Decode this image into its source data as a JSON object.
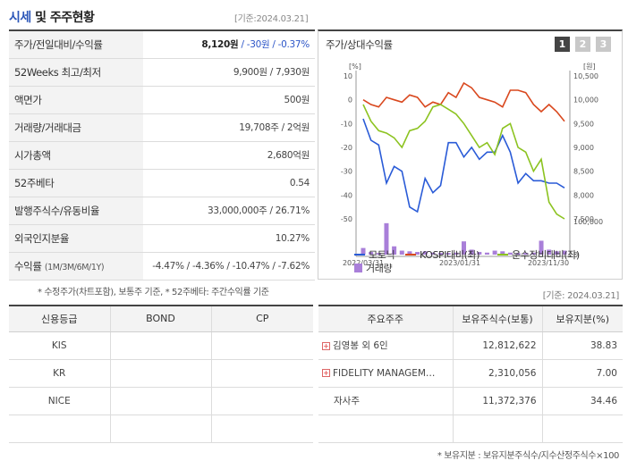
{
  "title_main": "시세",
  "title_sub": " 및 주주현황",
  "date_label": "[기준:2024.03.21]",
  "info_rows": [
    {
      "label": "주가/전일대비/수익률",
      "price": "8,120원",
      "rest": " / -30원 / -0.37%"
    },
    {
      "label": "52Weeks 최고/최저",
      "value": "9,900원 / 7,930원"
    },
    {
      "label": "액면가",
      "value": "500원"
    },
    {
      "label": "거래량/거래대금",
      "value": "19,708주 / 2억원"
    },
    {
      "label": "시가총액",
      "value": "2,680억원"
    },
    {
      "label": "52주베타",
      "value": "0.54"
    },
    {
      "label": "발행주식수/유동비율",
      "value": "33,000,000주 / 26.71%"
    },
    {
      "label": "외국인지분율",
      "value": "10.27%"
    },
    {
      "label": "수익률",
      "label_small": "(1M/3M/6M/1Y)",
      "value": "-4.47% / -4.36% / -10.47% / -7.62%"
    }
  ],
  "footnote_left": "* 수정주가(차트포함), 보통주 기준, * 52주베타: 주간수익률 기준",
  "chart_panel": {
    "title": "주가/상대수익률",
    "tabs": [
      "1",
      "2",
      "3"
    ],
    "left_unit": "[%]",
    "right_unit": "[원]",
    "legend": [
      "모토닉",
      "KOSPI대비(좌)",
      "운수장비대비(좌)",
      "거래량"
    ],
    "colors": {
      "stock": "#2a5bd7",
      "kospi": "#d9481e",
      "sector": "#8cc320",
      "volume": "#a97fd9"
    }
  },
  "chart_data": {
    "type": "line",
    "x_ticks": [
      "2022/03/31",
      "2023/01/31",
      "2023/11/30"
    ],
    "left_axis": {
      "ticks": [
        "10",
        "0",
        "-10",
        "-20",
        "-30",
        "-40",
        "-50"
      ],
      "range": [
        -50,
        10
      ]
    },
    "right_axis": {
      "ticks": [
        "10,500",
        "10,000",
        "9,500",
        "9,000",
        "8,500",
        "8,000",
        "7,500"
      ],
      "range": [
        7500,
        10500
      ]
    },
    "volume_axis": {
      "ticks": [
        "100,000",
        "0"
      ],
      "range": [
        0,
        100000
      ]
    },
    "series": [
      {
        "name": "모토닉",
        "axis": "left",
        "values": [
          -8,
          -17,
          -19,
          -35,
          -28,
          -30,
          -45,
          -47,
          -33,
          -39,
          -36,
          -18,
          -18,
          -24,
          -20,
          -25,
          -22,
          -22,
          -15,
          -22,
          -35,
          -31,
          -34,
          -34,
          -35,
          -35,
          -37
        ]
      },
      {
        "name": "KOSPI대비(좌)",
        "axis": "left",
        "values": [
          0,
          -2,
          -3,
          1,
          0,
          -1,
          2,
          1,
          -3,
          -1,
          -2,
          3,
          1,
          7,
          5,
          1,
          0,
          -1,
          -3,
          4,
          4,
          3,
          -2,
          -5,
          -2,
          -5,
          -9
        ]
      },
      {
        "name": "운수장비대비(좌)",
        "axis": "left",
        "values": [
          -2,
          -9,
          -13,
          -14,
          -16,
          -20,
          -13,
          -12,
          -9,
          -3,
          -2,
          -4,
          -6,
          -10,
          -15,
          -20,
          -18,
          -23,
          -12,
          -10,
          -20,
          -22,
          -30,
          -25,
          -43,
          -48,
          -50
        ]
      },
      {
        "name": "거래량",
        "axis": "volume",
        "values": [
          20000,
          8000,
          5000,
          95000,
          25000,
          12000,
          10000,
          8000,
          10000,
          6000,
          5000,
          5000,
          6000,
          40000,
          15000,
          8000,
          6000,
          12000,
          10000,
          6000,
          5000,
          5000,
          6000,
          42000,
          15000,
          10000,
          12000
        ]
      }
    ]
  },
  "date_label_2": "[기준: 2024.03.21]",
  "credit_table": {
    "headers": [
      "신용등급",
      "BOND",
      "CP"
    ],
    "rows": [
      [
        "KIS",
        "",
        ""
      ],
      [
        "KR",
        "",
        ""
      ],
      [
        "NICE",
        "",
        ""
      ],
      [
        "",
        "",
        ""
      ]
    ]
  },
  "holder_table": {
    "headers": [
      "주요주주",
      "보유주식수(보통)",
      "보유지분(%)"
    ],
    "rows": [
      {
        "name": "김영봉 외 6인",
        "expand": true,
        "shares": "12,812,622",
        "pct": "38.83"
      },
      {
        "name": "FIDELITY MANAGEM…",
        "expand": true,
        "shares": "2,310,056",
        "pct": "7.00"
      },
      {
        "name": "자사주",
        "expand": false,
        "shares": "11,372,376",
        "pct": "34.46"
      },
      {
        "name": "",
        "expand": false,
        "shares": "",
        "pct": ""
      }
    ]
  },
  "footnote_right": "* 보유지분 : 보유지분주식수/지수산정주식수×100"
}
